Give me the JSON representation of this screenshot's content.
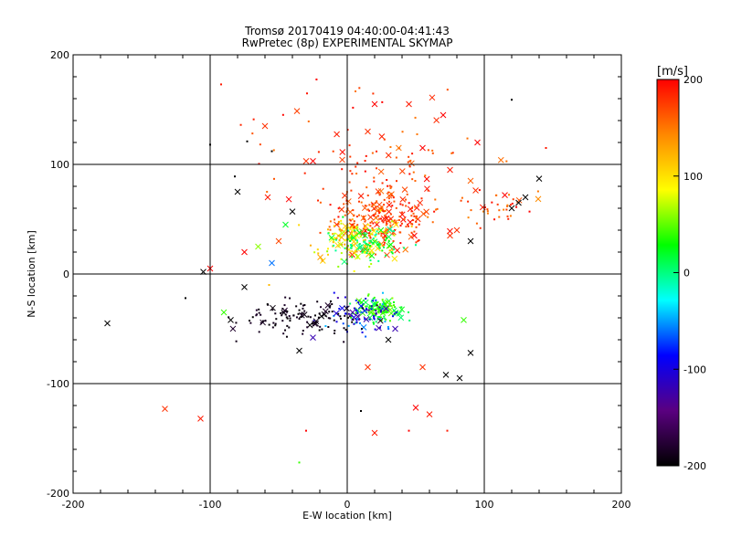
{
  "chart_data": {
    "type": "scatter",
    "title": "Tromsø 20170419 04:40:00-04:41:43",
    "subtitle": "RwPretec (8p) EXPERIMENTAL SKYMAP",
    "xlabel": "E-W location [km]",
    "ylabel": "N-S location [km]",
    "xlim": [
      -200,
      200
    ],
    "ylim": [
      -200,
      200
    ],
    "xticks": [
      "-200",
      "-100",
      "0",
      "100",
      "200"
    ],
    "yticks": [
      "-200",
      "-100",
      "0",
      "100",
      "200"
    ],
    "grid": true,
    "colorbar": {
      "label": "[m/s]",
      "range": [
        -200,
        200
      ],
      "ticks": [
        "200",
        "100",
        "0",
        "-100",
        "-200"
      ],
      "colormap": [
        "#000000",
        "#5a0080",
        "#0000ff",
        "#00ffff",
        "#00ff00",
        "#ffff00",
        "#ff8800",
        "#ff0000"
      ]
    },
    "markers": {
      "cross": "x",
      "dot": "·"
    },
    "clusters": [
      {
        "cx": 25,
        "cy": 50,
        "sx": 18,
        "sy": 15,
        "n": 240,
        "vmin": 150,
        "vmax": 200
      },
      {
        "cx": 5,
        "cy": 30,
        "sx": 14,
        "sy": 10,
        "n": 150,
        "vmin": 60,
        "vmax": 140
      },
      {
        "cx": 15,
        "cy": 28,
        "sx": 12,
        "sy": 8,
        "n": 80,
        "vmin": -10,
        "vmax": 40
      },
      {
        "cx": 25,
        "cy": -33,
        "sx": 9,
        "sy": 6,
        "n": 120,
        "vmin": 0,
        "vmax": 60
      },
      {
        "cx": 10,
        "cy": -35,
        "sx": 14,
        "sy": 8,
        "n": 80,
        "vmin": -130,
        "vmax": -40
      },
      {
        "cx": -30,
        "cy": -40,
        "sx": 25,
        "sy": 9,
        "n": 120,
        "vmin": -200,
        "vmax": -180
      },
      {
        "cx": 100,
        "cy": 60,
        "sx": 20,
        "sy": 10,
        "n": 45,
        "vmin": 140,
        "vmax": 200
      },
      {
        "cx": 20,
        "cy": 110,
        "sx": 40,
        "sy": 30,
        "n": 90,
        "vmin": 150,
        "vmax": 200
      }
    ],
    "points": [
      {
        "x": -175,
        "y": -45,
        "v": -200,
        "m": "x"
      },
      {
        "x": -133,
        "y": -123,
        "v": 180,
        "m": "x"
      },
      {
        "x": -107,
        "y": -132,
        "v": 190,
        "m": "x"
      },
      {
        "x": -100,
        "y": 5,
        "v": 200,
        "m": "x"
      },
      {
        "x": -105,
        "y": 2,
        "v": -200,
        "m": "x"
      },
      {
        "x": -118,
        "y": -22,
        "v": -200,
        "m": "."
      },
      {
        "x": -85,
        "y": -42,
        "v": -200,
        "m": "x"
      },
      {
        "x": -80,
        "y": 75,
        "v": -200,
        "m": "x"
      },
      {
        "x": -75,
        "y": 20,
        "v": 200,
        "m": "x"
      },
      {
        "x": -60,
        "y": 135,
        "v": 180,
        "m": "x"
      },
      {
        "x": -58,
        "y": 70,
        "v": 190,
        "m": "x"
      },
      {
        "x": -55,
        "y": 10,
        "v": -60,
        "m": "x"
      },
      {
        "x": -50,
        "y": 30,
        "v": 170,
        "m": "x"
      },
      {
        "x": -30,
        "y": 103,
        "v": 180,
        "m": "x"
      },
      {
        "x": -25,
        "y": 103,
        "v": 200,
        "m": "x"
      },
      {
        "x": -40,
        "y": 57,
        "v": -200,
        "m": "x"
      },
      {
        "x": -45,
        "y": 45,
        "v": 20,
        "m": "x"
      },
      {
        "x": -65,
        "y": 25,
        "v": 60,
        "m": "x"
      },
      {
        "x": 45,
        "y": 155,
        "v": 190,
        "m": "x"
      },
      {
        "x": 70,
        "y": 145,
        "v": 200,
        "m": "x"
      },
      {
        "x": 20,
        "y": 155,
        "v": 200,
        "m": "x"
      },
      {
        "x": 15,
        "y": 130,
        "v": 180,
        "m": "x"
      },
      {
        "x": 55,
        "y": 115,
        "v": 200,
        "m": "x"
      },
      {
        "x": 95,
        "y": 120,
        "v": 200,
        "m": "x"
      },
      {
        "x": 75,
        "y": 95,
        "v": 190,
        "m": "x"
      },
      {
        "x": 120,
        "y": 60,
        "v": -200,
        "m": "x"
      },
      {
        "x": 130,
        "y": 70,
        "v": -200,
        "m": "x"
      },
      {
        "x": 140,
        "y": 87,
        "v": -200,
        "m": "x"
      },
      {
        "x": 125,
        "y": 65,
        "v": -200,
        "m": "x"
      },
      {
        "x": 90,
        "y": 85,
        "v": 160,
        "m": "x"
      },
      {
        "x": 115,
        "y": 72,
        "v": 200,
        "m": "x"
      },
      {
        "x": 80,
        "y": 40,
        "v": 180,
        "m": "x"
      },
      {
        "x": 90,
        "y": 30,
        "v": -200,
        "m": "x"
      },
      {
        "x": 75,
        "y": 35,
        "v": 180,
        "m": "x"
      },
      {
        "x": 85,
        "y": -42,
        "v": 40,
        "m": "x"
      },
      {
        "x": 90,
        "y": -72,
        "v": -200,
        "m": "x"
      },
      {
        "x": 82,
        "y": -95,
        "v": -200,
        "m": "x"
      },
      {
        "x": 72,
        "y": -92,
        "v": -200,
        "m": "x"
      },
      {
        "x": 55,
        "y": -85,
        "v": 180,
        "m": "x"
      },
      {
        "x": 50,
        "y": -122,
        "v": 200,
        "m": "x"
      },
      {
        "x": 60,
        "y": -128,
        "v": 190,
        "m": "x"
      },
      {
        "x": 20,
        "y": -145,
        "v": 190,
        "m": "x"
      },
      {
        "x": 35,
        "y": -50,
        "v": -120,
        "m": "x"
      },
      {
        "x": 30,
        "y": -60,
        "v": -200,
        "m": "x"
      },
      {
        "x": 15,
        "y": -85,
        "v": 180,
        "m": "x"
      },
      {
        "x": -25,
        "y": -58,
        "v": -120,
        "m": "x"
      },
      {
        "x": -35,
        "y": -70,
        "v": -200,
        "m": "x"
      },
      {
        "x": -90,
        "y": -35,
        "v": 40,
        "m": "x"
      },
      {
        "x": -75,
        "y": -12,
        "v": -200,
        "m": "x"
      },
      {
        "x": -82,
        "y": 89,
        "v": -200,
        "m": "."
      },
      {
        "x": -73,
        "y": 121,
        "v": -200,
        "m": "."
      },
      {
        "x": -100,
        "y": 118,
        "v": -200,
        "m": "."
      },
      {
        "x": -55,
        "y": 112,
        "v": -200,
        "m": "."
      },
      {
        "x": -92,
        "y": 173,
        "v": 190,
        "m": "."
      },
      {
        "x": -57,
        "y": -10,
        "v": 120,
        "m": "."
      },
      {
        "x": -30,
        "y": -143,
        "v": 200,
        "m": "."
      },
      {
        "x": -35,
        "y": -172,
        "v": 40,
        "m": "."
      },
      {
        "x": 45,
        "y": -143,
        "v": 200,
        "m": "."
      },
      {
        "x": 10,
        "y": -125,
        "v": -200,
        "m": "."
      },
      {
        "x": 73,
        "y": -143,
        "v": 190,
        "m": "."
      },
      {
        "x": 120,
        "y": 159,
        "v": -200,
        "m": "."
      },
      {
        "x": 145,
        "y": 115,
        "v": 190,
        "m": "."
      }
    ]
  }
}
